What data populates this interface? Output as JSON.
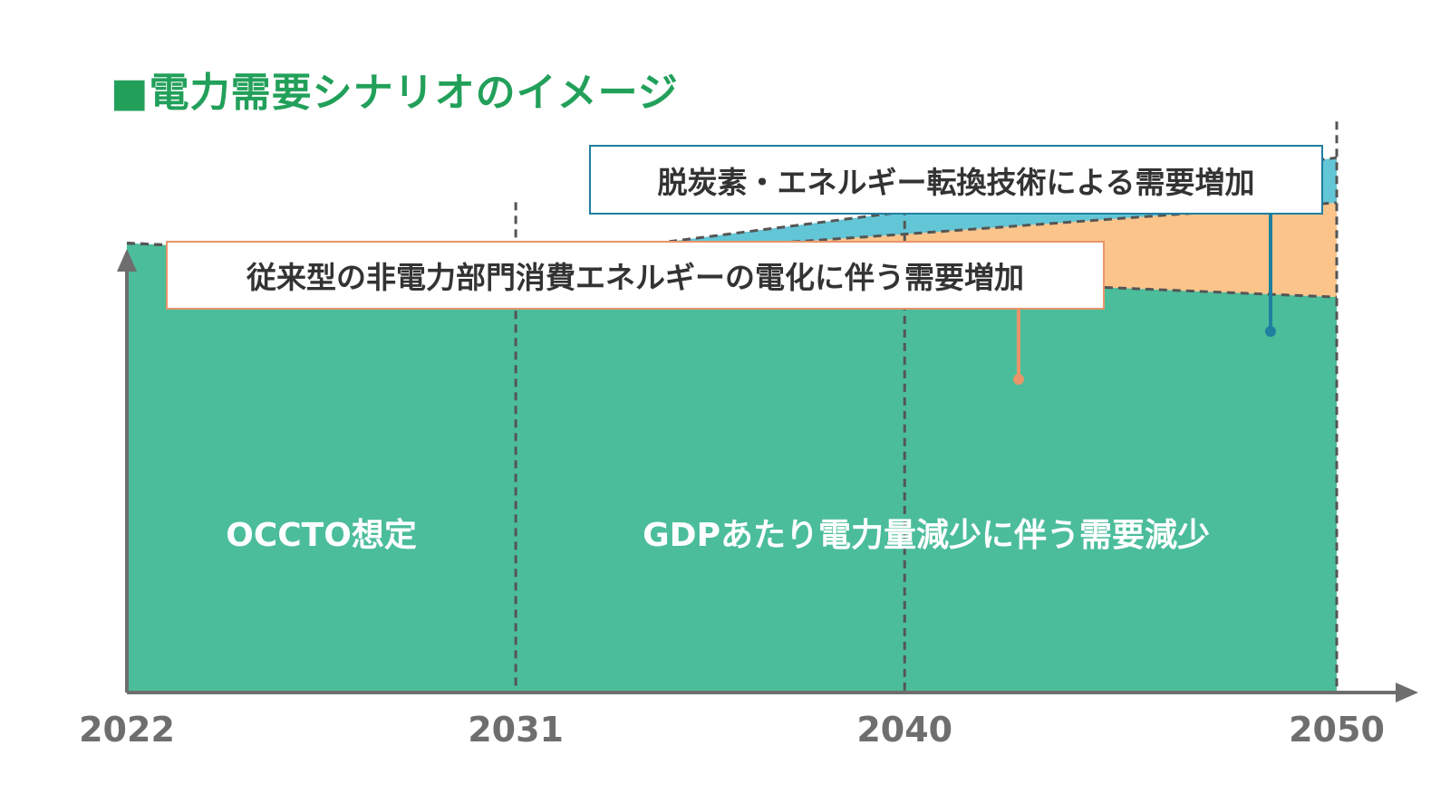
{
  "title": "■電力需要シナリオのイメージ",
  "chart_data": {
    "type": "area",
    "stacked": true,
    "x": [
      2022,
      2031,
      2040,
      2050
    ],
    "series": [
      {
        "name": "GDPあたり電力量減少に伴う需要減少",
        "color": "#4bbd9a",
        "values": [
          100,
          96,
          92,
          88
        ]
      },
      {
        "name": "従来型の非電力部門消費エネルギーの電化に伴う需要増加",
        "color": "#fbc48a",
        "values": [
          0,
          0,
          10,
          21
        ]
      },
      {
        "name": "脱炭素・エネルギー転換技術による需要増加",
        "color": "#63c6d6",
        "values": [
          0,
          0,
          5,
          10
        ]
      }
    ],
    "ylim": [
      0,
      140
    ],
    "xlabel": "",
    "ylabel": "",
    "grid": false,
    "units": "index (approx.)",
    "regions": [
      {
        "label": "OCCTO想定",
        "from": 2022,
        "to": 2031
      },
      {
        "label": "GDPあたり電力量減少に伴う需要減少",
        "from": 2031,
        "to": 2050
      }
    ],
    "callouts": [
      {
        "text": "脱炭素・エネルギー転換技術による需要増加",
        "series": 2,
        "color": "#1f7fa0"
      },
      {
        "text": "従来型の非電力部門消費エネルギーの電化に伴う需要増加",
        "series": 1,
        "color": "#e9956a"
      }
    ],
    "xticks": [
      "2022",
      "2031",
      "2040",
      "2050"
    ]
  }
}
